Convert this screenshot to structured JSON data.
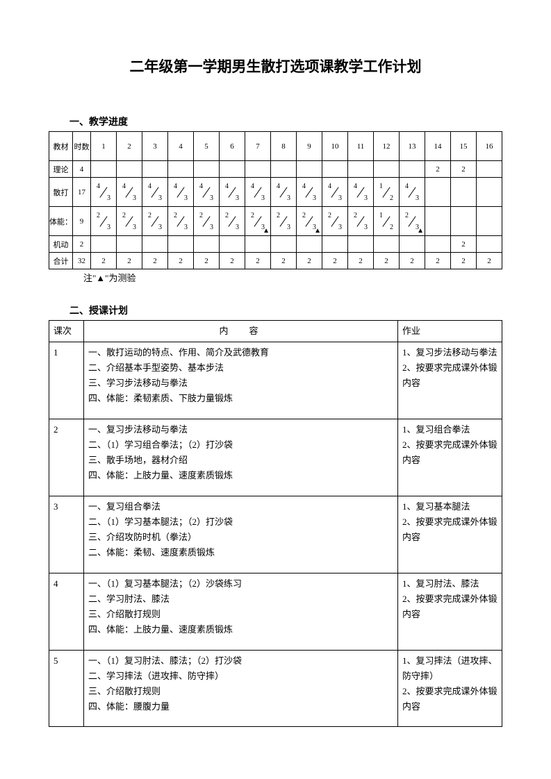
{
  "title": "二年级第一学期男生散打选项课教学工作计划",
  "section1": {
    "header": "一、教学进度",
    "col_label_1": "教材",
    "col_label_2": "时数",
    "week_numbers": [
      "1",
      "2",
      "3",
      "4",
      "5",
      "6",
      "7",
      "8",
      "9",
      "10",
      "11",
      "12",
      "13",
      "14",
      "15",
      "16"
    ],
    "rows": [
      {
        "label": "理论",
        "hours": "4",
        "cells": [
          "",
          "",
          "",
          "",
          "",
          "",
          "",
          "",
          "",
          "",
          "",
          "",
          "",
          "2",
          "2",
          ""
        ]
      },
      {
        "label": "散打",
        "hours": "17",
        "tall": true,
        "cells": [
          {
            "n": "4",
            "d": "3"
          },
          {
            "n": "4",
            "d": "3"
          },
          {
            "n": "4",
            "d": "3"
          },
          {
            "n": "4",
            "d": "3"
          },
          {
            "n": "4",
            "d": "3"
          },
          {
            "n": "4",
            "d": "3"
          },
          {
            "n": "4",
            "d": "3"
          },
          {
            "n": "4",
            "d": "3"
          },
          {
            "n": "4",
            "d": "3"
          },
          {
            "n": "4",
            "d": "3"
          },
          {
            "n": "4",
            "d": "3"
          },
          {
            "n": "1",
            "d": "2"
          },
          {
            "n": "4",
            "d": "3"
          },
          "",
          "",
          ""
        ]
      },
      {
        "label": "体能：",
        "hours": "9",
        "tall": true,
        "cells": [
          {
            "n": "2",
            "d": "3"
          },
          {
            "n": "2",
            "d": "3"
          },
          {
            "n": "2",
            "d": "3"
          },
          {
            "n": "2",
            "d": "3"
          },
          {
            "n": "2",
            "d": "3"
          },
          {
            "n": "2",
            "d": "3"
          },
          {
            "n": "2",
            "d": "3",
            "tri": true
          },
          {
            "n": "2",
            "d": "3"
          },
          {
            "n": "2",
            "d": "3",
            "tri": true
          },
          {
            "n": "2",
            "d": "3"
          },
          {
            "n": "2",
            "d": "3"
          },
          {
            "n": "1",
            "d": "2"
          },
          {
            "n": "2",
            "d": "3",
            "tri": true
          },
          "",
          "",
          ""
        ]
      },
      {
        "label": "机动",
        "hours": "2",
        "cells": [
          "",
          "",
          "",
          "",
          "",
          "",
          "",
          "",
          "",
          "",
          "",
          "",
          "",
          "",
          "2",
          ""
        ]
      },
      {
        "label": "合计",
        "hours": "32",
        "cells": [
          "2",
          "2",
          "2",
          "2",
          "2",
          "2",
          "2",
          "2",
          "2",
          "2",
          "2",
          "2",
          "2",
          "2",
          "2",
          "2"
        ]
      }
    ],
    "note": "注\"▲\"为测验"
  },
  "section2": {
    "header": "二、授课计划",
    "hdr_num": "课次",
    "hdr_content": "内容",
    "hdr_hw": "作业",
    "lessons": [
      {
        "num": "1",
        "content": [
          "一、散打运动的特点、作用、简介及武德教育",
          "二、介绍基本手型姿势、基本步法",
          "三、学习步法移动与拳法",
          "四、体能：柔韧素质、下肢力量锻炼"
        ],
        "hw": [
          "1、复习步法移动与拳法",
          "2、按要求完成课外体锻内容"
        ]
      },
      {
        "num": "2",
        "content": [
          "一、复习步法移动与拳法",
          "二、（1）学习组合拳法；（2）打沙袋",
          "三、散手场地，器材介绍",
          "四、体能：上肢力量、速度素质锻炼"
        ],
        "hw": [
          "1、复习组合拳法",
          "2、按要求完成课外体锻内容"
        ]
      },
      {
        "num": "3",
        "content": [
          "一、复习组合拳法",
          "二、（1）学习基本腿法；（2）打沙袋",
          "三、介绍攻防时机（拳法）",
          "二、体能：柔韧、速度素质锻炼"
        ],
        "hw": [
          "1、复习基本腿法",
          "2、按要求完成课外体锻内容"
        ]
      },
      {
        "num": "4",
        "content": [
          "一、（1）复习基本腿法；（2）沙袋练习",
          "二、学习肘法、膝法",
          "三、介绍散打规则",
          "四、体能：上肢力量、速度素质锻炼"
        ],
        "hw": [
          "1、复习肘法、膝法",
          "2、按要求完成课外体锻内容"
        ]
      },
      {
        "num": "5",
        "content": [
          "一、（1）复习肘法、膝法；（2）打沙袋",
          "二、学习摔法（进攻摔、防守摔）",
          "三、介绍散打规则",
          "四、体能：腰腹力量"
        ],
        "hw": [
          "1、复习摔法（进攻摔、防守摔）",
          "2、按要求完成课外体锻内容"
        ]
      }
    ]
  }
}
